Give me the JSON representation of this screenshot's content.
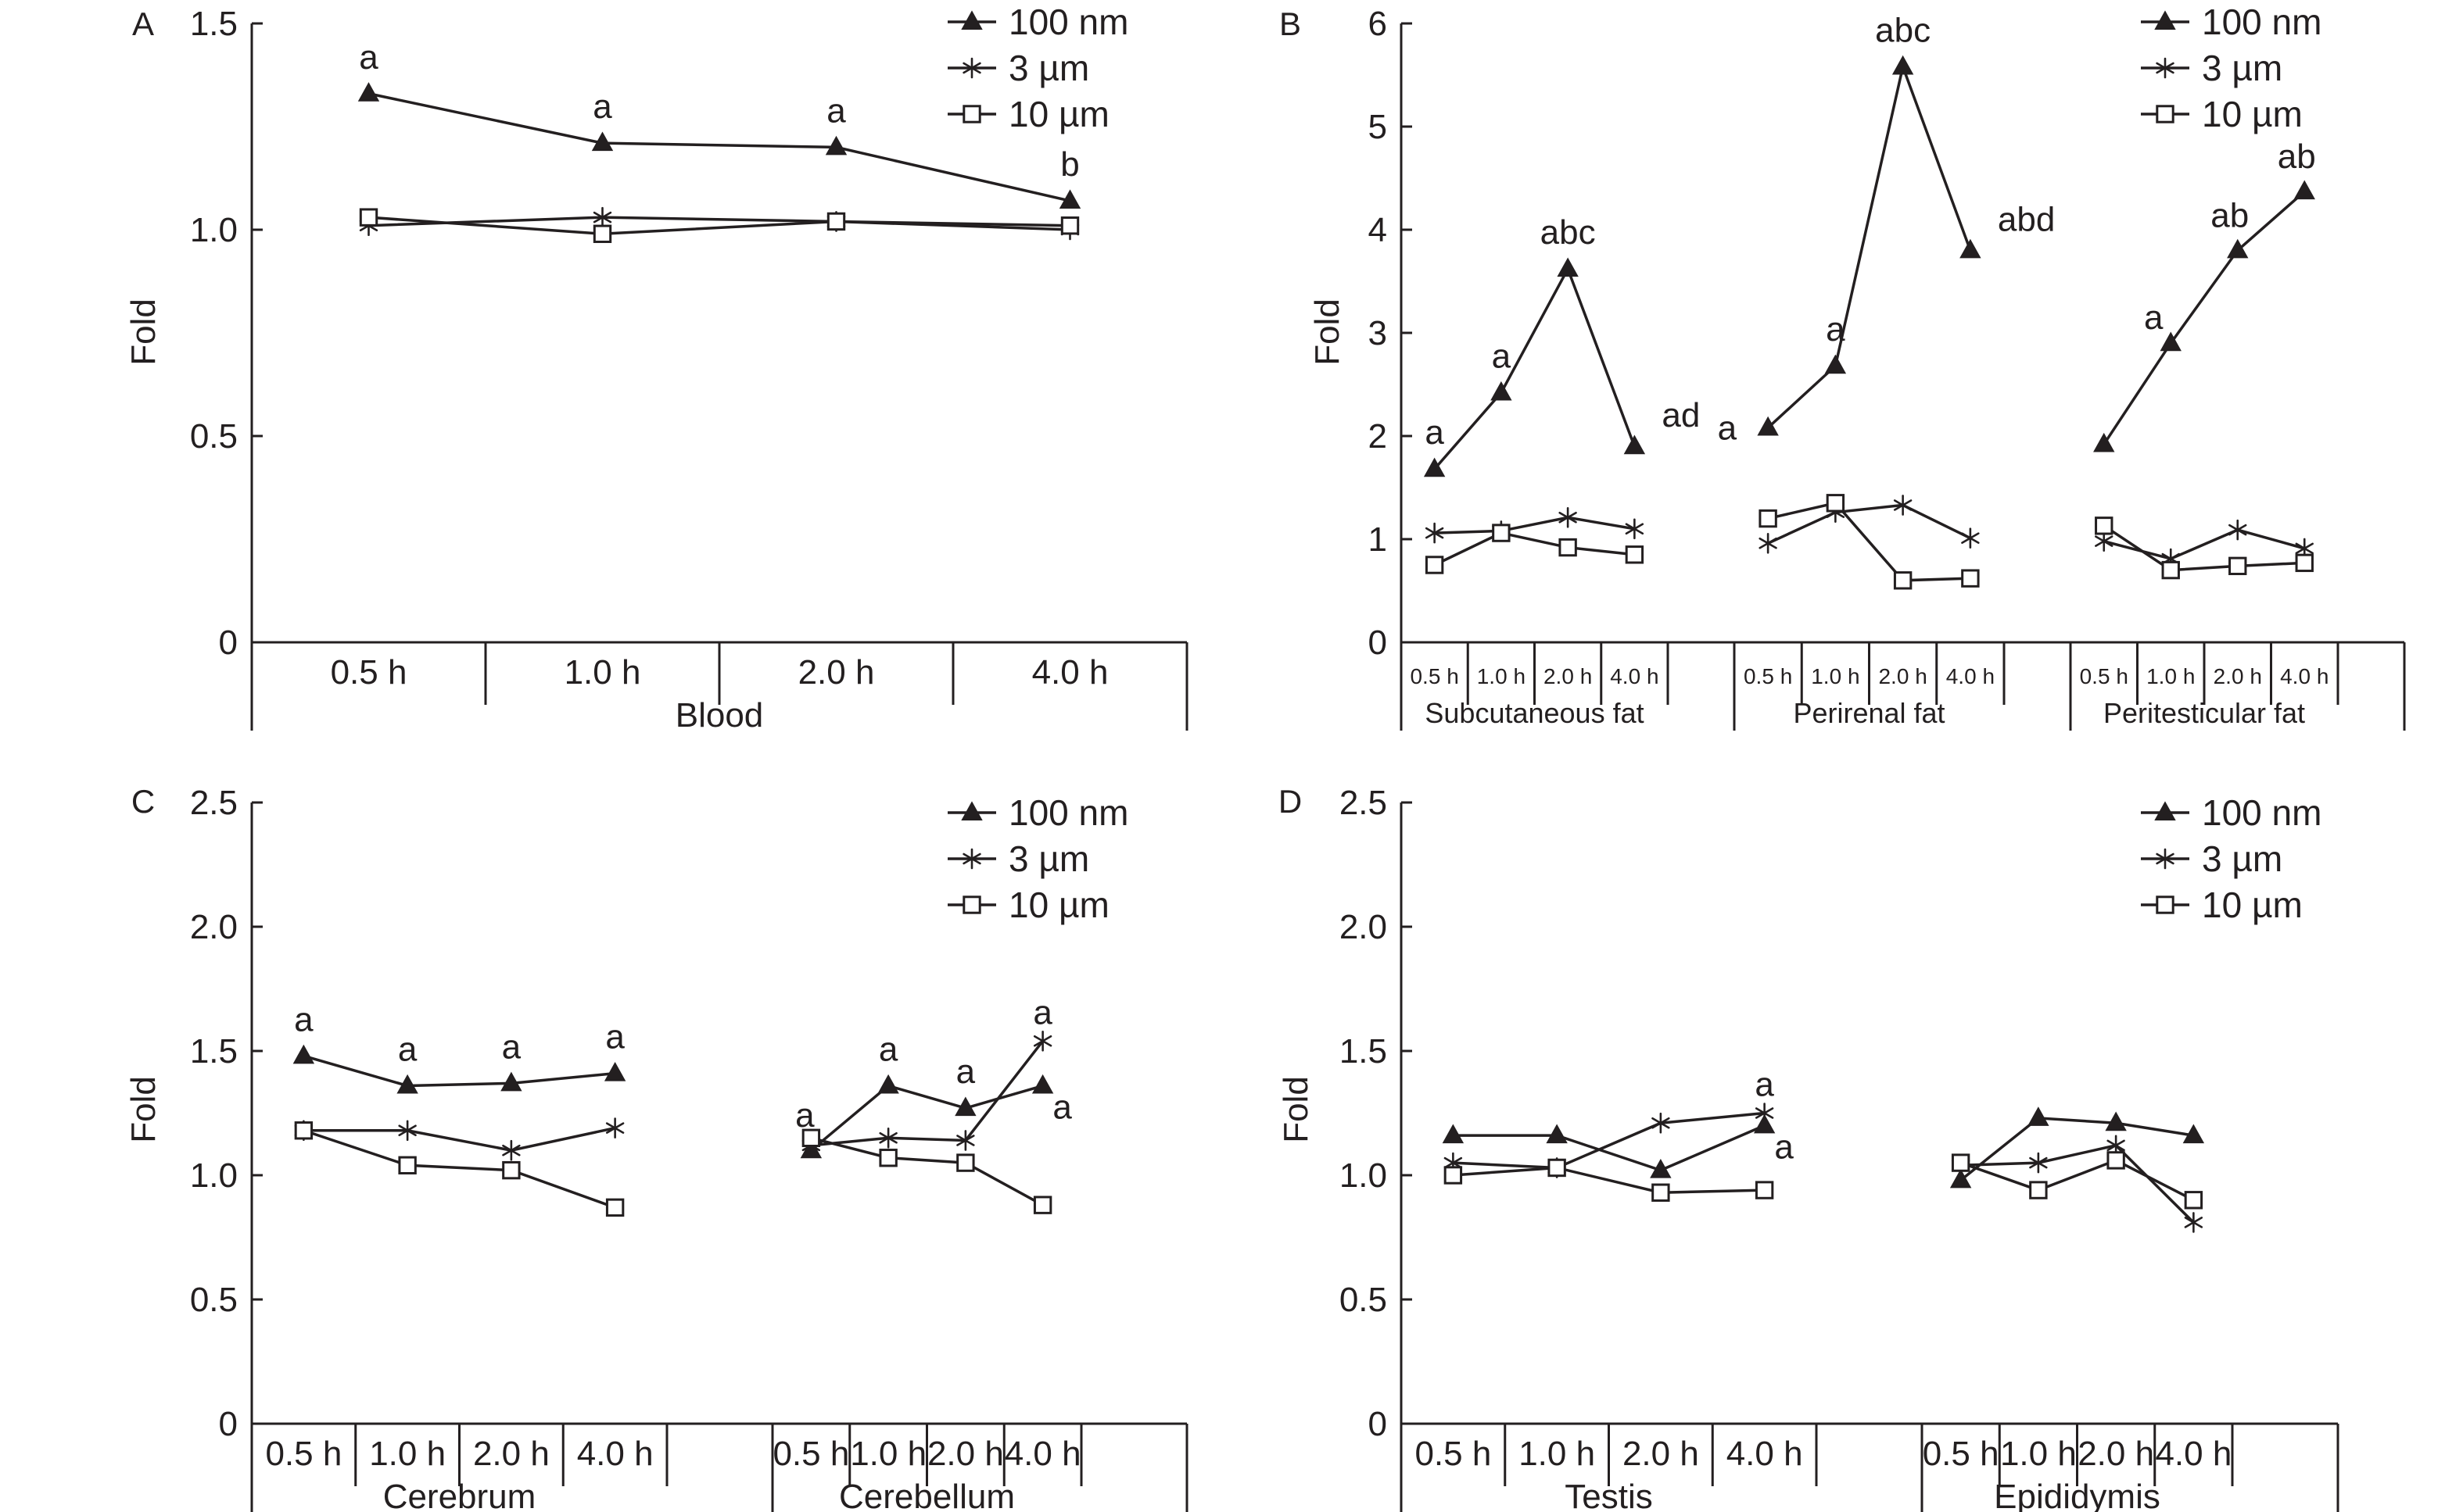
{
  "figure": {
    "legend": [
      {
        "label": "100 nm",
        "marker": "triangle-filled"
      },
      {
        "label": "3 µm",
        "marker": "asterisk"
      },
      {
        "label": "10 µm",
        "marker": "square-open"
      }
    ],
    "colors": {
      "line": "#231f20",
      "background": "#ffffff"
    }
  },
  "chart_data": [
    {
      "panel": "A",
      "type": "line",
      "ylabel": "Fold",
      "ylim": [
        0,
        1.5
      ],
      "yticks": [
        0,
        0.5,
        1.0,
        1.5
      ],
      "ytick_labels": [
        "0",
        "0.5",
        "1.0",
        "1.5"
      ],
      "groups": [
        {
          "name": "Blood",
          "categories": [
            "0.5 h",
            "1.0 h",
            "2.0 h",
            "4.0 h"
          ]
        }
      ],
      "series": [
        {
          "name": "100 nm",
          "marker": "triangle-filled",
          "values": [
            [
              1.33,
              1.21,
              1.2,
              1.07
            ]
          ]
        },
        {
          "name": "3 µm",
          "marker": "asterisk",
          "values": [
            [
              1.01,
              1.03,
              1.02,
              1.0
            ]
          ]
        },
        {
          "name": "10 µm",
          "marker": "square-open",
          "values": [
            [
              1.03,
              0.99,
              1.02,
              1.01
            ]
          ]
        }
      ],
      "annotations": [
        [
          "a",
          "a",
          "a",
          "b"
        ]
      ]
    },
    {
      "panel": "B",
      "type": "line",
      "ylabel": "Fold",
      "ylim": [
        0,
        6
      ],
      "yticks": [
        0,
        1,
        2,
        3,
        4,
        5,
        6
      ],
      "ytick_labels": [
        "0",
        "1",
        "2",
        "3",
        "4",
        "5",
        "6"
      ],
      "groups": [
        {
          "name": "Subcutaneous fat",
          "categories": [
            "0.5 h",
            "1.0 h",
            "2.0 h",
            "4.0 h"
          ]
        },
        {
          "name": "Perirenal fat",
          "categories": [
            "0.5 h",
            "1.0 h",
            "2.0 h",
            "4.0 h"
          ]
        },
        {
          "name": "Peritesticular fat",
          "categories": [
            "0.5 h",
            "1.0 h",
            "2.0 h",
            "4.0 h"
          ]
        }
      ],
      "series": [
        {
          "name": "100 nm",
          "marker": "triangle-filled",
          "values": [
            [
              1.68,
              2.42,
              3.62,
              1.9
            ],
            [
              2.08,
              2.68,
              5.58,
              3.8
            ],
            [
              1.92,
              2.9,
              3.8,
              4.37
            ]
          ]
        },
        {
          "name": "3 µm",
          "marker": "asterisk",
          "values": [
            [
              1.06,
              1.08,
              1.21,
              1.1
            ],
            [
              0.96,
              1.26,
              1.33,
              1.01
            ],
            [
              0.98,
              0.81,
              1.09,
              0.91
            ]
          ]
        },
        {
          "name": "10 µm",
          "marker": "square-open",
          "values": [
            [
              0.75,
              1.06,
              0.92,
              0.85
            ],
            [
              1.2,
              1.35,
              0.6,
              0.62
            ],
            [
              1.13,
              0.7,
              0.74,
              0.77
            ]
          ]
        }
      ],
      "annotations": [
        [
          "a",
          "a",
          "abc",
          "ad"
        ],
        [
          "a",
          "a",
          "abc",
          "abd"
        ],
        [
          "",
          "a",
          "ab",
          "ab"
        ]
      ]
    },
    {
      "panel": "C",
      "type": "line",
      "ylabel": "Fold",
      "ylim": [
        0,
        2.5
      ],
      "yticks": [
        0,
        0.5,
        1.0,
        1.5,
        2.0,
        2.5
      ],
      "ytick_labels": [
        "0",
        "0.5",
        "1.0",
        "1.5",
        "2.0",
        "2.5"
      ],
      "groups": [
        {
          "name": "Cerebrum",
          "categories": [
            "0.5 h",
            "1.0 h",
            "2.0 h",
            "4.0 h"
          ]
        },
        {
          "name": "Cerebellum",
          "categories": [
            "0.5 h",
            "1.0 h",
            "2.0 h",
            "4.0 h"
          ]
        }
      ],
      "series": [
        {
          "name": "100 nm",
          "marker": "triangle-filled",
          "values": [
            [
              1.48,
              1.36,
              1.37,
              1.41
            ],
            [
              1.1,
              1.36,
              1.27,
              1.36
            ]
          ]
        },
        {
          "name": "3 µm",
          "marker": "asterisk",
          "values": [
            [
              1.18,
              1.18,
              1.1,
              1.19
            ],
            [
              1.12,
              1.15,
              1.14,
              1.54
            ]
          ]
        },
        {
          "name": "10 µm",
          "marker": "square-open",
          "values": [
            [
              1.18,
              1.04,
              1.02,
              0.87
            ],
            [
              1.15,
              1.07,
              1.05,
              0.88
            ]
          ]
        }
      ],
      "annotations": [
        [
          "a",
          "a",
          "a",
          "a"
        ],
        [
          "a",
          "a",
          "a",
          "a"
        ]
      ],
      "extra_annotations": [
        {
          "group": 1,
          "index": 3,
          "text": "a"
        }
      ]
    },
    {
      "panel": "D",
      "type": "line",
      "ylabel": "Fold",
      "ylim": [
        0,
        2.5
      ],
      "yticks": [
        0,
        0.5,
        1.0,
        1.5,
        2.0,
        2.5
      ],
      "ytick_labels": [
        "0",
        "0.5",
        "1.0",
        "1.5",
        "2.0",
        "2.5"
      ],
      "groups": [
        {
          "name": "Testis",
          "categories": [
            "0.5 h",
            "1.0 h",
            "2.0 h",
            "4.0 h"
          ]
        },
        {
          "name": "Epididymis",
          "categories": [
            "0.5 h",
            "1.0 h",
            "2.0 h",
            "4.0 h"
          ]
        }
      ],
      "series": [
        {
          "name": "100 nm",
          "marker": "triangle-filled",
          "values": [
            [
              1.16,
              1.16,
              1.02,
              1.2
            ],
            [
              0.98,
              1.23,
              1.21,
              1.16
            ]
          ]
        },
        {
          "name": "3 µm",
          "marker": "asterisk",
          "values": [
            [
              1.05,
              1.03,
              1.21,
              1.25
            ],
            [
              1.04,
              1.05,
              1.12,
              0.81
            ]
          ]
        },
        {
          "name": "10 µm",
          "marker": "square-open",
          "values": [
            [
              1.0,
              1.03,
              0.93,
              0.94
            ],
            [
              1.05,
              0.94,
              1.06,
              0.9
            ]
          ]
        }
      ],
      "annotations": [
        [
          "",
          "",
          "",
          "a"
        ],
        [
          "",
          "",
          "",
          ""
        ]
      ],
      "extra_annotations": [
        {
          "group": 0,
          "index": 3,
          "text": "a"
        }
      ]
    }
  ]
}
